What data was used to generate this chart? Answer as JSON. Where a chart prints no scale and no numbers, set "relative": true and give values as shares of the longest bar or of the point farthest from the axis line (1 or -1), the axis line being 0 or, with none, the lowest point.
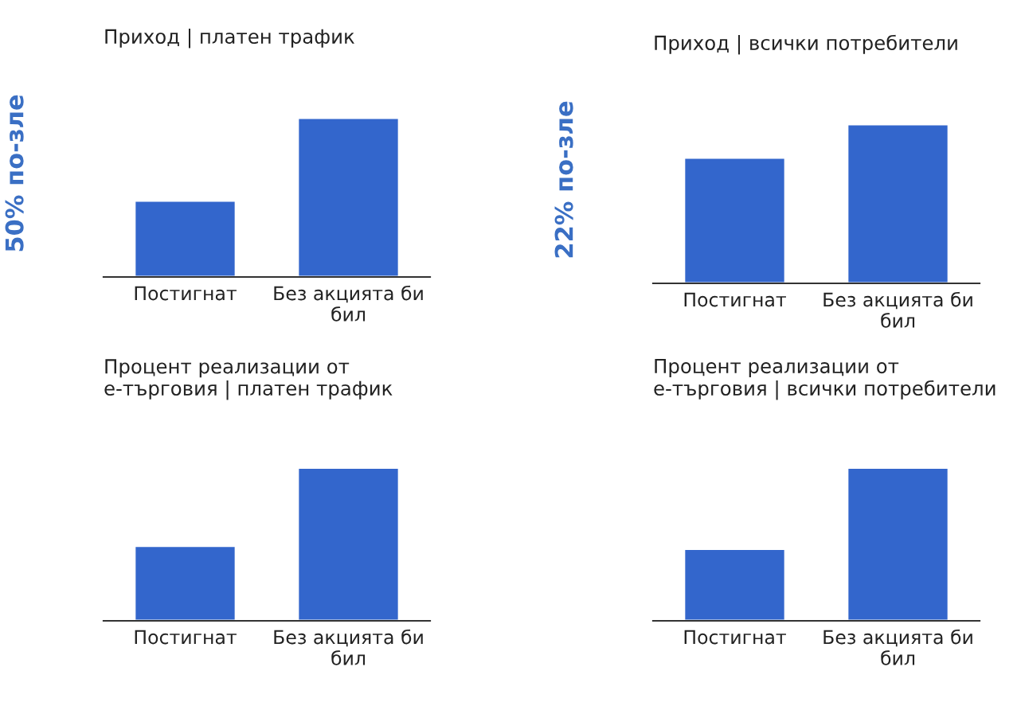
{
  "chart_data": [
    {
      "type": "bar",
      "title": "Приход | платен трафик",
      "ylabel": "50% по-зле",
      "categories": [
        "Постигнат",
        "Без акцията би бил"
      ],
      "values": [
        0.48,
        1
      ],
      "color": "#3366cc",
      "relative": true
    },
    {
      "type": "bar",
      "title": "Приход | всички потребители",
      "ylabel": "22% по-зле",
      "categories": [
        "Постигнат",
        "Без акцията би бил"
      ],
      "values": [
        0.79,
        1
      ],
      "color": "#3366cc",
      "relative": true
    },
    {
      "type": "bar",
      "title": "Процент реализации от е-търговия | платен трафик",
      "categories": [
        "Постигнат",
        "Без акцията би бил"
      ],
      "values": [
        0.49,
        1
      ],
      "color": "#3366cc",
      "relative": true
    },
    {
      "type": "bar",
      "title": "Процент реализации от е-търговия | всички потребители",
      "categories": [
        "Постигнат",
        "Без акцията би бил"
      ],
      "values": [
        0.47,
        1
      ],
      "color": "#3366cc",
      "relative": true
    }
  ]
}
